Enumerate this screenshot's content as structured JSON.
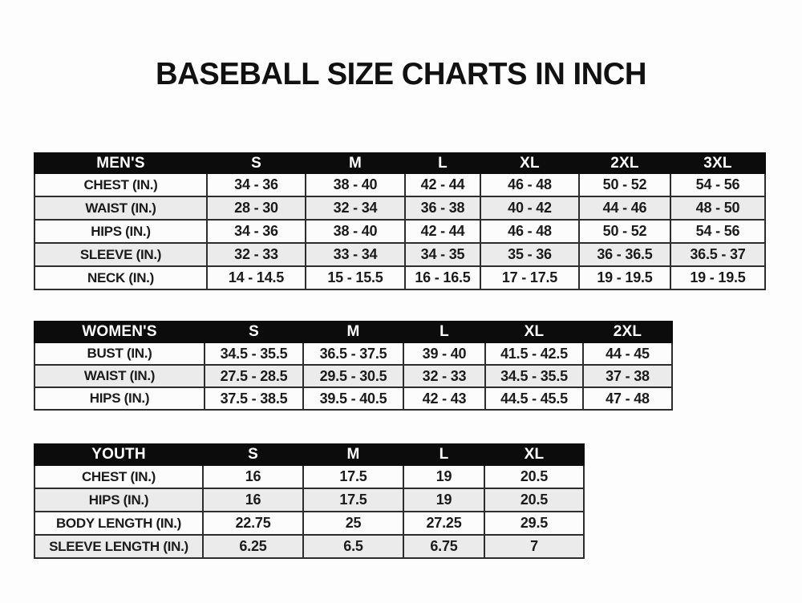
{
  "page": {
    "title": "BASEBALL SIZE CHARTS IN INCH"
  },
  "colors": {
    "header_bg": "#0c0c0c",
    "header_text": "#ffffff",
    "row_stripe": "#ebebeb",
    "border": "#2d2d2d",
    "text": "#1b1b1b",
    "page_bg": "#fdfdfd"
  },
  "tables": [
    {
      "id": "mens",
      "group_label": "MEN'S",
      "header": [
        "MEN'S",
        "S",
        "M",
        "L",
        "XL",
        "2XL",
        "3XL"
      ],
      "rows": [
        [
          "CHEST (IN.)",
          "34 - 36",
          "38 - 40",
          "42 - 44",
          "46 - 48",
          "50 - 52",
          "54 - 56"
        ],
        [
          "WAIST (IN.)",
          "28 - 30",
          "32 - 34",
          "36 - 38",
          "40 - 42",
          "44 - 46",
          "48 - 50"
        ],
        [
          "HIPS (IN.)",
          "34 - 36",
          "38 - 40",
          "42 - 44",
          "46 - 48",
          "50 - 52",
          "54 - 56"
        ],
        [
          "SLEEVE (IN.)",
          "32 - 33",
          "33 - 34",
          "34 - 35",
          "35 - 36",
          "36 - 36.5",
          "36.5 - 37"
        ],
        [
          "NECK (IN.)",
          "14 - 14.5",
          "15 - 15.5",
          "16 - 16.5",
          "17 - 17.5",
          "19 - 19.5",
          "19 - 19.5"
        ]
      ]
    },
    {
      "id": "womens",
      "group_label": "WOMEN'S",
      "header": [
        "WOMEN'S",
        "S",
        "M",
        "L",
        "XL",
        "2XL"
      ],
      "rows": [
        [
          "BUST (IN.)",
          "34.5 - 35.5",
          "36.5 - 37.5",
          "39 - 40",
          "41.5 - 42.5",
          "44 - 45"
        ],
        [
          "WAIST (IN.)",
          "27.5 - 28.5",
          "29.5 - 30.5",
          "32 - 33",
          "34.5 - 35.5",
          "37 - 38"
        ],
        [
          "HIPS (IN.)",
          "37.5 - 38.5",
          "39.5 - 40.5",
          "42 - 43",
          "44.5 - 45.5",
          "47 - 48"
        ]
      ]
    },
    {
      "id": "youth",
      "group_label": "YOUTH",
      "header": [
        "YOUTH",
        "S",
        "M",
        "L",
        "XL"
      ],
      "rows": [
        [
          "CHEST (IN.)",
          "16",
          "17.5",
          "19",
          "20.5"
        ],
        [
          "HIPS (IN.)",
          "16",
          "17.5",
          "19",
          "20.5"
        ],
        [
          "BODY LENGTH (IN.)",
          "22.75",
          "25",
          "27.25",
          "29.5"
        ],
        [
          "SLEEVE LENGTH (IN.)",
          "6.25",
          "6.5",
          "6.75",
          "7"
        ]
      ]
    }
  ]
}
